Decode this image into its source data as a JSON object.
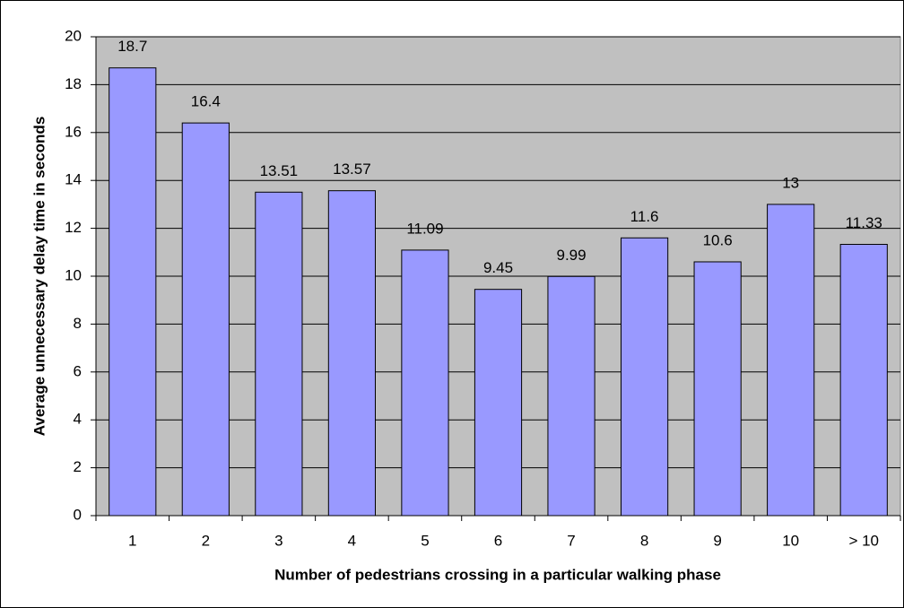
{
  "chart_data": {
    "type": "bar",
    "xlabel": "Number of pedestrians crossing in a particular walking phase",
    "ylabel": "Average unnecessary delay time in seconds",
    "categories": [
      "1",
      "2",
      "3",
      "4",
      "5",
      "6",
      "7",
      "8",
      "9",
      "10",
      "> 10"
    ],
    "values": [
      18.7,
      16.4,
      13.51,
      13.57,
      11.09,
      9.45,
      9.99,
      11.6,
      10.6,
      13,
      11.33
    ],
    "color": "#9999ff",
    "ylim": [
      0,
      20
    ],
    "yticks": [
      0,
      2,
      4,
      6,
      8,
      10,
      12,
      14,
      16,
      18,
      20
    ],
    "grid": true
  }
}
